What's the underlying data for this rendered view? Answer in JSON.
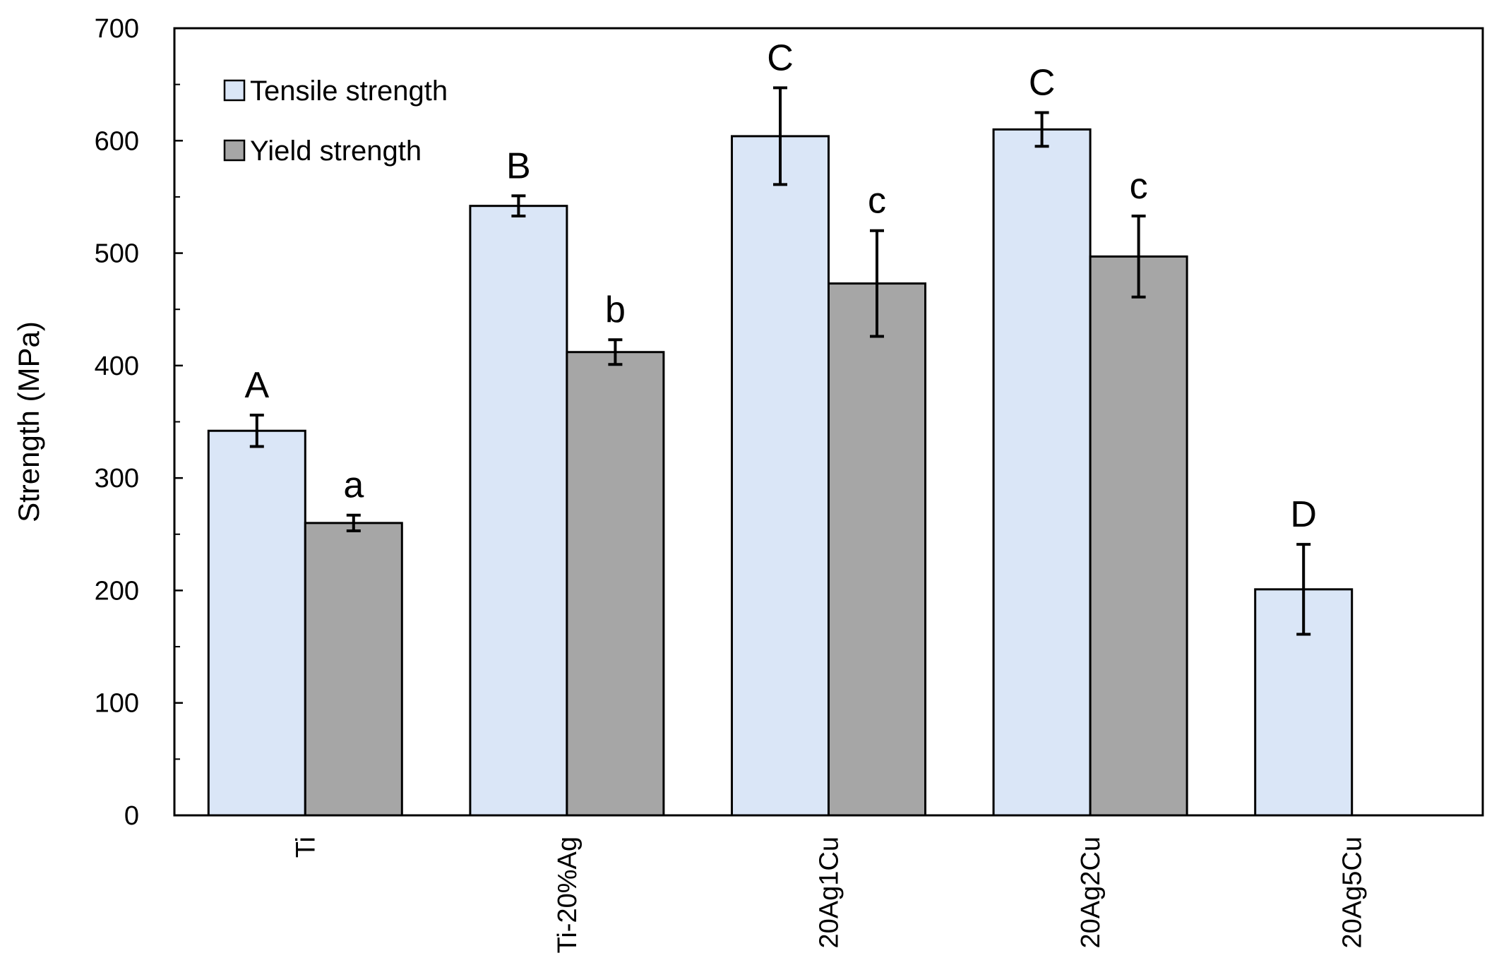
{
  "chart_data": {
    "type": "bar",
    "categories": [
      "Ti",
      "Ti-20%Ag",
      "20Ag1Cu",
      "20Ag2Cu",
      "20Ag5Cu"
    ],
    "series": [
      {
        "name": "Tensile strength",
        "color": "#dae6f7",
        "values": [
          342,
          542,
          604,
          610,
          201
        ],
        "errors": [
          14,
          9,
          43,
          15,
          40
        ],
        "letters": [
          "A",
          "B",
          "C",
          "C",
          "D"
        ]
      },
      {
        "name": "Yield strength",
        "color": "#a6a6a6",
        "values": [
          260,
          412,
          473,
          497,
          null
        ],
        "errors": [
          7,
          11,
          47,
          36,
          null
        ],
        "letters": [
          "a",
          "b",
          "c",
          "c",
          null
        ]
      }
    ],
    "title": "",
    "xlabel": "",
    "ylabel": "Strength (MPa)",
    "ylim": [
      0,
      700
    ],
    "yticks": [
      0,
      100,
      200,
      300,
      400,
      500,
      600,
      700
    ],
    "grid": false,
    "legend_position": "top-left"
  }
}
